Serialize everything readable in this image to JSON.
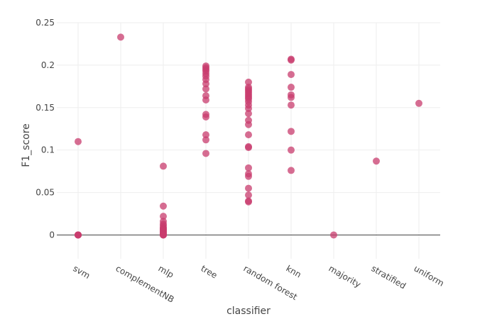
{
  "chart_data": {
    "type": "scatter",
    "xlabel": "classifier",
    "ylabel": "F1_score",
    "categories": [
      "svm",
      "complementNB",
      "mlp",
      "tree",
      "random forest",
      "knn",
      "majority",
      "stratified",
      "uniform"
    ],
    "ylim": [
      -0.028,
      0.25
    ],
    "yticks": [
      0,
      0.05,
      0.1,
      0.15,
      0.2,
      0.25
    ],
    "ytick_labels": [
      "0",
      "0.05",
      "0.1",
      "0.15",
      "0.2",
      "0.25"
    ],
    "grid": true,
    "marker_color": "#c83c6e",
    "points": {
      "svm": [
        0.11,
        0,
        0,
        0,
        0
      ],
      "complementNB": [
        0.233
      ],
      "mlp": [
        0.081,
        0.034,
        0.022,
        0.016,
        0.013,
        0.011,
        0.009,
        0.008,
        0.007,
        0.006,
        0.005,
        0.004,
        0.003,
        0.002,
        0.001,
        0,
        0,
        0
      ],
      "tree": [
        0.199,
        0.197,
        0.195,
        0.193,
        0.19,
        0.187,
        0.183,
        0.178,
        0.172,
        0.164,
        0.159,
        0.142,
        0.139,
        0.118,
        0.112,
        0.096
      ],
      "random forest": [
        0.18,
        0.174,
        0.172,
        0.17,
        0.168,
        0.166,
        0.164,
        0.162,
        0.16,
        0.157,
        0.153,
        0.149,
        0.143,
        0.135,
        0.13,
        0.118,
        0.104,
        0.103,
        0.079,
        0.072,
        0.069,
        0.055,
        0.047,
        0.04,
        0.039
      ],
      "knn": [
        0.207,
        0.206,
        0.189,
        0.174,
        0.165,
        0.162,
        0.153,
        0.122,
        0.1,
        0.076
      ],
      "majority": [
        0
      ],
      "stratified": [
        0.087
      ],
      "uniform": [
        0.155
      ]
    }
  }
}
